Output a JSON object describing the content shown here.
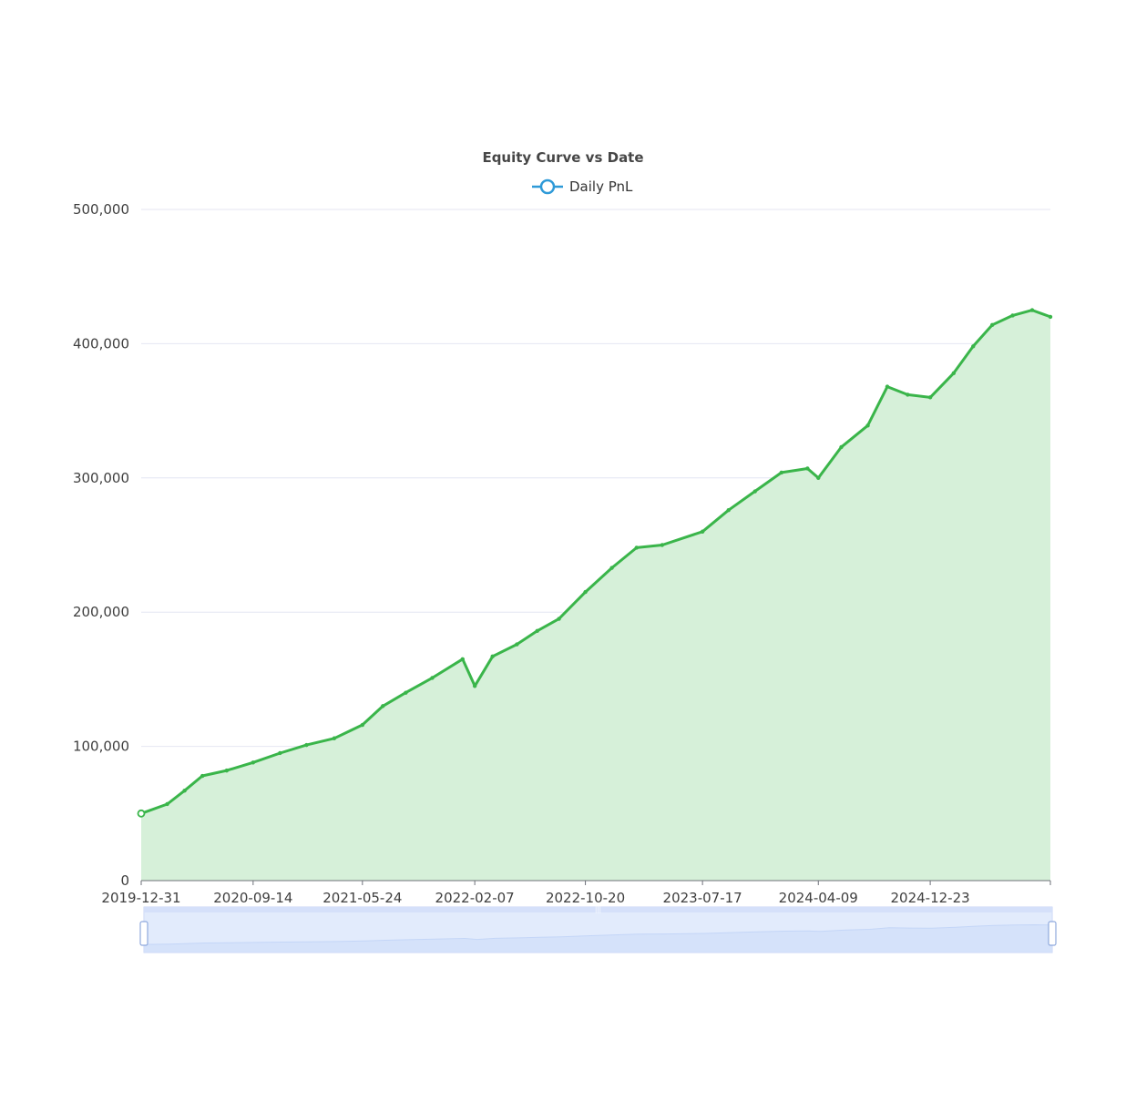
{
  "chart_data": {
    "type": "area",
    "title": "Equity Curve vs Date",
    "xlabel": "",
    "ylabel": "",
    "legend": {
      "position": "top-center",
      "items": [
        {
          "name": "Daily PnL",
          "icon": "circle-line-marker"
        }
      ]
    },
    "ylim": [
      0,
      500000
    ],
    "y_ticks": [
      {
        "value": 0,
        "label": "0"
      },
      {
        "value": 100000,
        "label": "100,000"
      },
      {
        "value": 200000,
        "label": "200,000"
      },
      {
        "value": 300000,
        "label": "300,000"
      },
      {
        "value": 400000,
        "label": "400,000"
      },
      {
        "value": 500000,
        "label": "500,000"
      }
    ],
    "xlim": [
      "2019-12-31",
      "2025-09-26"
    ],
    "x_ticks": [
      "2019-12-31",
      "2020-09-14",
      "2021-05-24",
      "2022-02-07",
      "2022-10-20",
      "2023-07-17",
      "2024-04-09",
      "2024-12-23"
    ],
    "grid": true,
    "data_zoom": {
      "start": 0,
      "end": 1
    },
    "colors": {
      "line": "#3ab54a",
      "area": "#d6f0d9",
      "legend": "#2f9ad8",
      "grid": "#e4e6f2",
      "axis_text": "#3f3f3f",
      "zoom_fill": "#dbe5fb",
      "zoom_border": "#c9d6f5"
    },
    "series": [
      {
        "name": "Daily PnL",
        "x": [
          "2019-12-31",
          "2020-02-29",
          "2020-04-09",
          "2020-05-20",
          "2020-07-15",
          "2020-09-14",
          "2020-11-15",
          "2021-01-15",
          "2021-03-20",
          "2021-05-24",
          "2021-07-10",
          "2021-09-01",
          "2021-11-01",
          "2022-01-10",
          "2022-02-07",
          "2022-03-20",
          "2022-05-15",
          "2022-07-01",
          "2022-08-20",
          "2022-10-20",
          "2022-12-20",
          "2023-02-15",
          "2023-04-15",
          "2023-07-17",
          "2023-09-15",
          "2023-11-15",
          "2024-01-15",
          "2024-03-15",
          "2024-04-09",
          "2024-06-01",
          "2024-08-01",
          "2024-09-15",
          "2024-11-01",
          "2024-12-23",
          "2025-02-15",
          "2025-04-01",
          "2025-05-15",
          "2025-07-01",
          "2025-08-15",
          "2025-09-26"
        ],
        "values": [
          50000,
          57000,
          67000,
          78000,
          82000,
          88000,
          95000,
          101000,
          106000,
          116000,
          130000,
          140000,
          151000,
          165000,
          145000,
          167000,
          176000,
          186000,
          195000,
          215000,
          233000,
          248000,
          250000,
          260000,
          276000,
          290000,
          304000,
          307000,
          300000,
          323000,
          339000,
          368000,
          362000,
          360000,
          378000,
          398000,
          414000,
          421000,
          425000,
          420000
        ]
      }
    ]
  }
}
